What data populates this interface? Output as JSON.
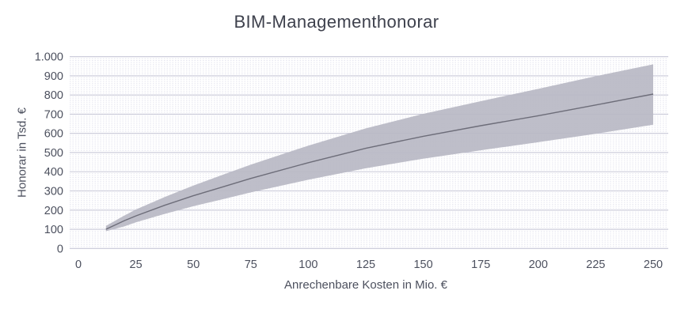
{
  "chart_data": {
    "type": "area",
    "title": "BIM-Managementhonorar",
    "xlabel": "Anrechenbare Kosten in Mio. €",
    "ylabel": "Honorar in Tsd. €",
    "xlim": [
      0,
      250
    ],
    "ylim": [
      0,
      1000
    ],
    "x_ticks": [
      0,
      25,
      50,
      75,
      100,
      125,
      150,
      175,
      200,
      225,
      250
    ],
    "y_ticks": [
      "0",
      "100",
      "200",
      "300",
      "400",
      "500",
      "600",
      "700",
      "800",
      "900",
      "1.000"
    ],
    "y_tick_values": [
      0,
      100,
      200,
      300,
      400,
      500,
      600,
      700,
      800,
      900,
      1000
    ],
    "grid": {
      "major_step": 100,
      "minor_step": 10,
      "grid_on": true
    },
    "legend": "none",
    "x": [
      12,
      20,
      25,
      37.5,
      50,
      62.5,
      75,
      100,
      125,
      150,
      175,
      200,
      225,
      250
    ],
    "series": [
      {
        "name": "upper",
        "values": [
          118,
          172,
          203,
          268,
          328,
          383,
          437,
          536,
          626,
          702,
          768,
          832,
          898,
          960
        ]
      },
      {
        "name": "mid",
        "values": [
          100,
          145,
          170,
          225,
          275,
          320,
          365,
          447,
          522,
          585,
          640,
          692,
          748,
          805
        ]
      },
      {
        "name": "lower",
        "values": [
          90,
          115,
          136,
          180,
          220,
          256,
          292,
          358,
          418,
          468,
          512,
          554,
          598,
          645
        ]
      }
    ],
    "colors": {
      "band_fill": "#b9b9c4",
      "mid_line": "#6d6d79",
      "grid_major": "#c7c7d7",
      "grid_minor": "#e5e5ef",
      "tick_text": "#4c505e",
      "title_text": "#3e414d"
    }
  }
}
